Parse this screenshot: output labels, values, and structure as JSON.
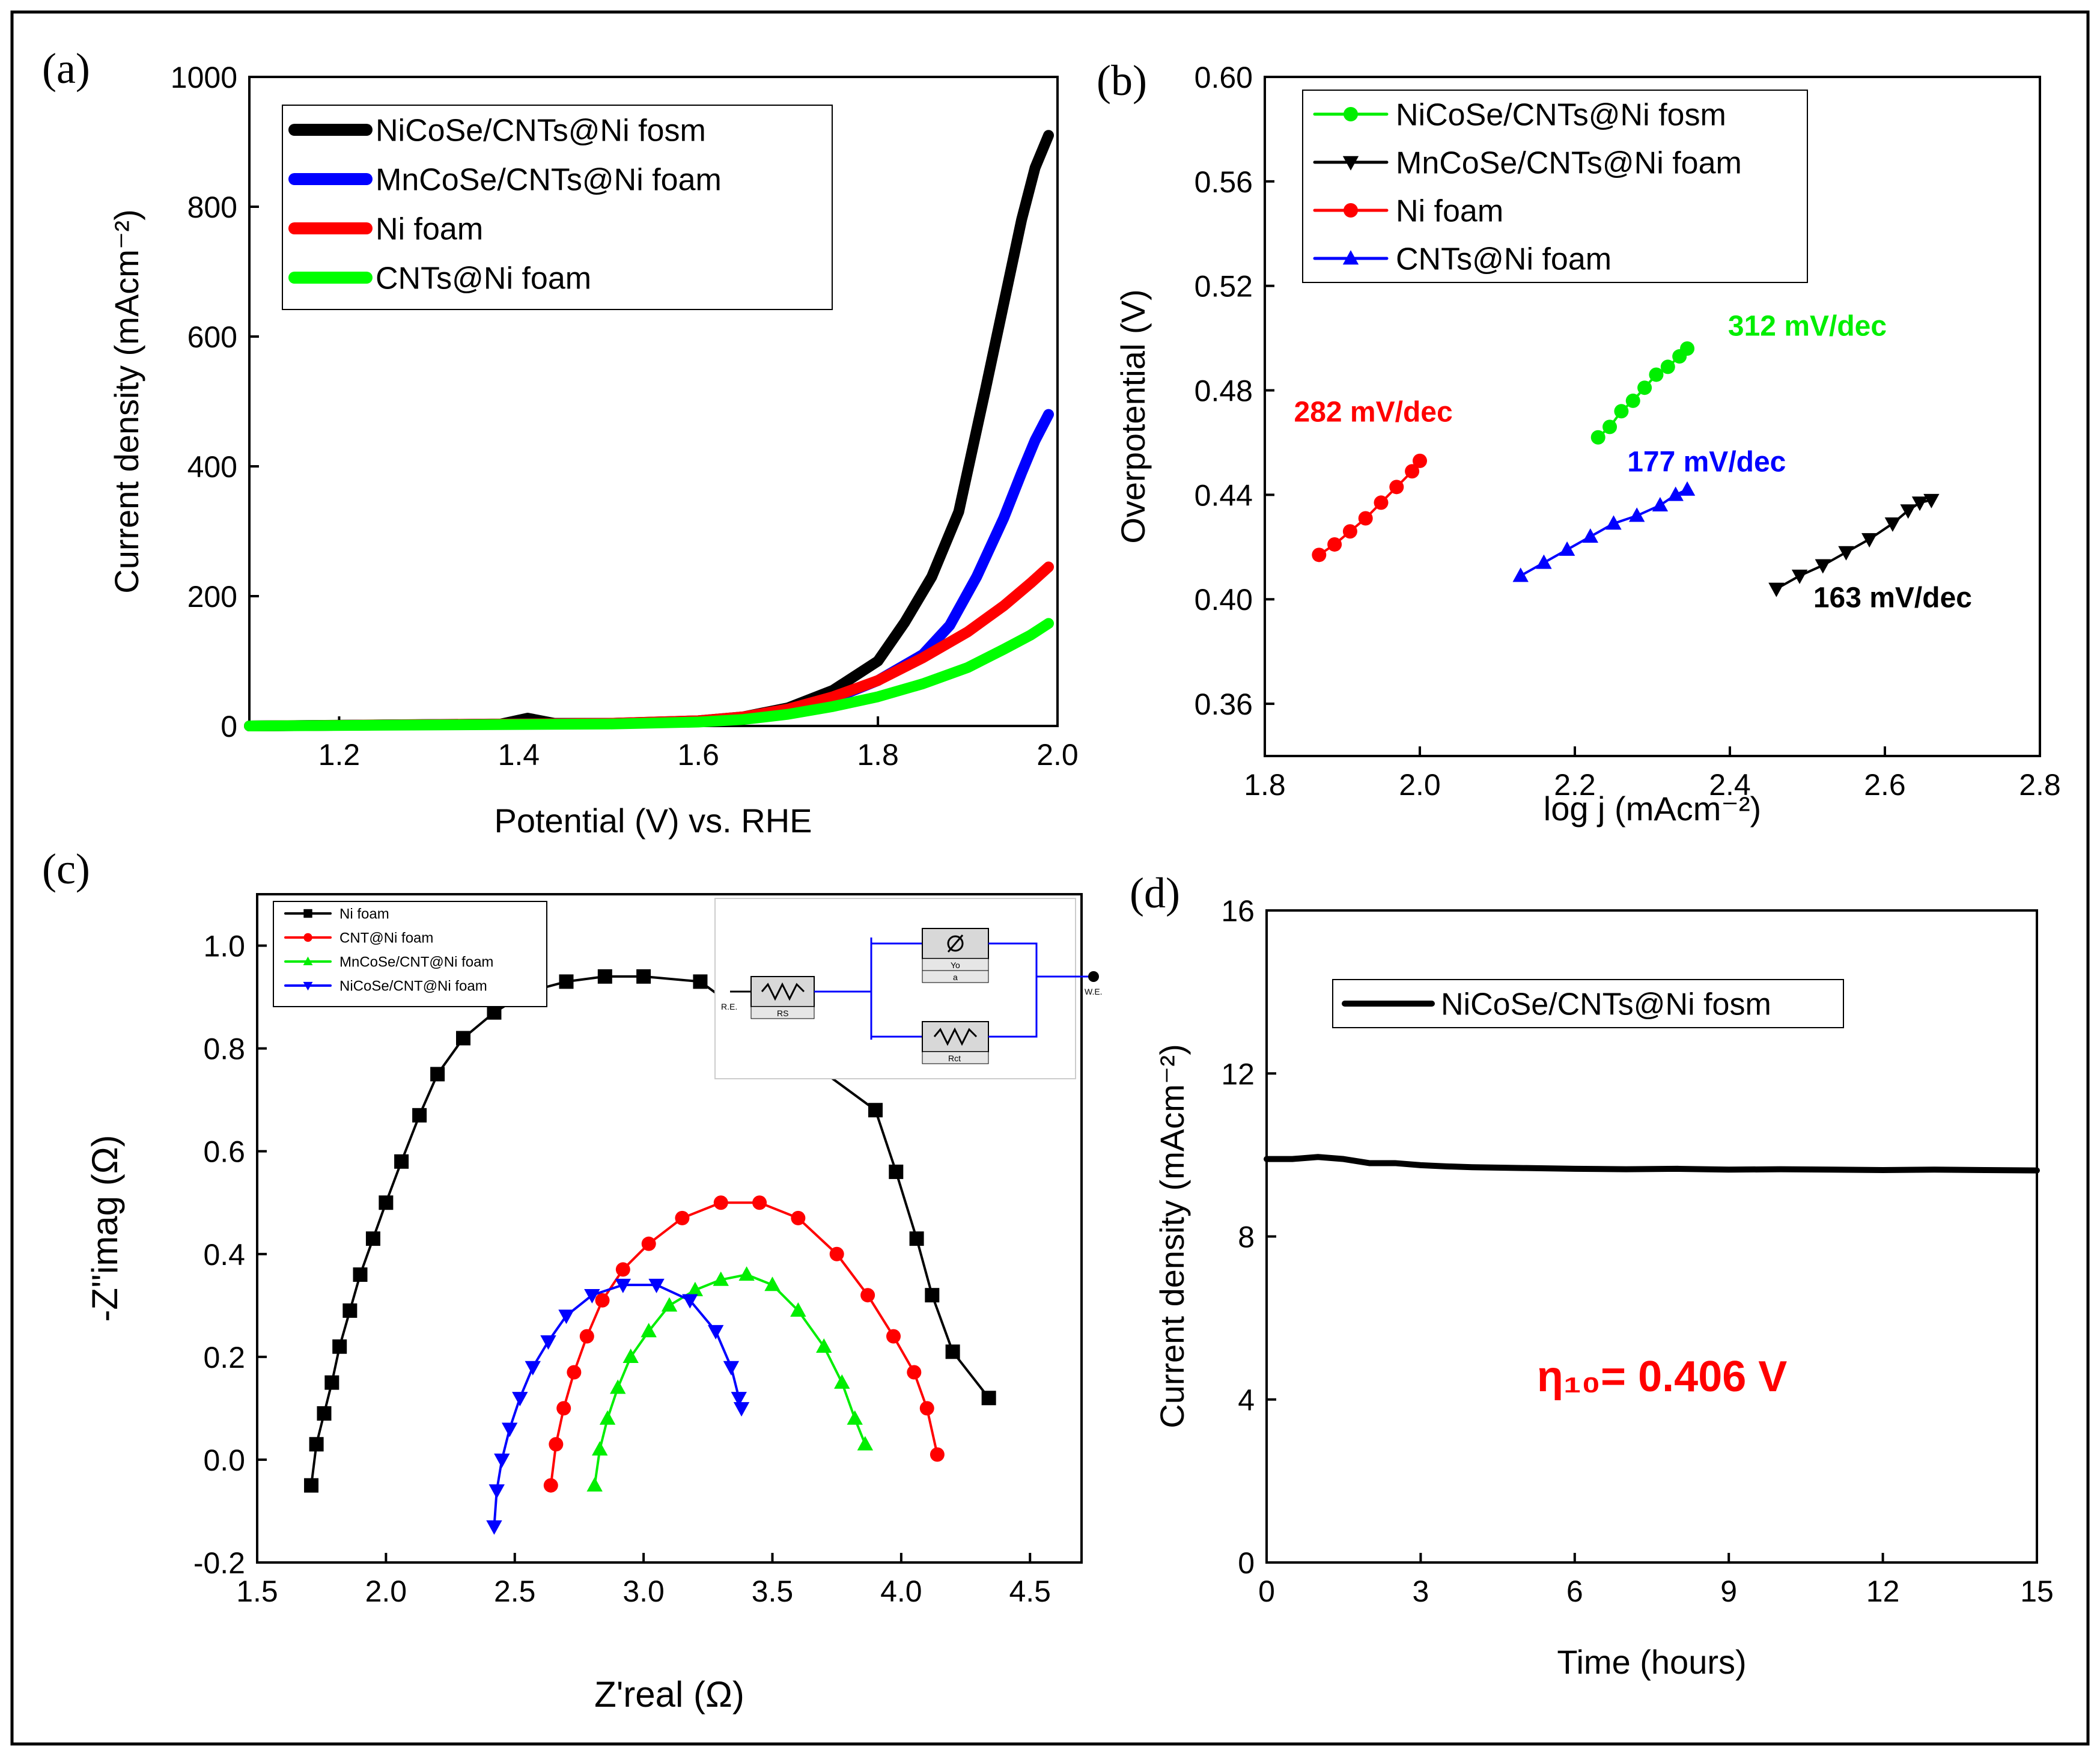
{
  "figure": {
    "panel_labels": [
      "(a)",
      "(b)",
      "(c)",
      "(d)"
    ]
  },
  "chart_data": [
    {
      "panel": "(a)",
      "type": "line",
      "xlabel": "Potential (V) vs. RHE",
      "ylabel": "Current density (mAcm⁻²)",
      "xlim": [
        1.1,
        2.0
      ],
      "ylim": [
        0,
        1000
      ],
      "xticks": [
        1.2,
        1.4,
        1.6,
        1.8,
        2.0
      ],
      "xtick_labels": [
        "1.2",
        "1.4",
        "1.6",
        "1.8",
        "2.0"
      ],
      "yticks": [
        0,
        200,
        400,
        600,
        800,
        1000
      ],
      "ytick_labels": [
        "0",
        "200",
        "400",
        "600",
        "800",
        "1000"
      ],
      "legend_position": "top-left",
      "series": [
        {
          "name": "NiCoSe/CNTs@Ni fosm",
          "color": "#000000",
          "x": [
            1.1,
            1.38,
            1.41,
            1.44,
            1.5,
            1.6,
            1.65,
            1.7,
            1.75,
            1.8,
            1.83,
            1.86,
            1.89,
            1.92,
            1.94,
            1.96,
            1.975,
            1.99
          ],
          "y": [
            0,
            3,
            12,
            4,
            4,
            8,
            14,
            28,
            55,
            100,
            160,
            230,
            330,
            520,
            650,
            780,
            860,
            910
          ]
        },
        {
          "name": "MnCoSe/CNTs@Ni foam",
          "color": "#0000ff",
          "x": [
            1.1,
            1.5,
            1.6,
            1.65,
            1.7,
            1.75,
            1.8,
            1.85,
            1.88,
            1.91,
            1.94,
            1.96,
            1.975,
            1.99
          ],
          "y": [
            0,
            4,
            7,
            12,
            24,
            42,
            70,
            110,
            155,
            230,
            320,
            390,
            440,
            480
          ]
        },
        {
          "name": "Ni foam",
          "color": "#ff0000",
          "x": [
            1.1,
            1.5,
            1.6,
            1.65,
            1.7,
            1.75,
            1.8,
            1.85,
            1.9,
            1.94,
            1.97,
            1.99
          ],
          "y": [
            0,
            4,
            8,
            14,
            26,
            45,
            70,
            105,
            145,
            185,
            220,
            245
          ]
        },
        {
          "name": "CNTs@Ni foam",
          "color": "#00ff00",
          "x": [
            1.1,
            1.5,
            1.6,
            1.65,
            1.7,
            1.75,
            1.8,
            1.85,
            1.9,
            1.94,
            1.97,
            1.99
          ],
          "y": [
            0,
            3,
            6,
            10,
            18,
            30,
            45,
            65,
            90,
            118,
            140,
            158
          ]
        }
      ]
    },
    {
      "panel": "(b)",
      "type": "scatter",
      "xlabel": "log j (mAcm⁻²)",
      "ylabel": "Overpotential (V)",
      "xlim": [
        1.8,
        2.8
      ],
      "ylim": [
        0.34,
        0.6
      ],
      "xticks": [
        1.8,
        2.0,
        2.2,
        2.4,
        2.6,
        2.8
      ],
      "xtick_labels": [
        "1.8",
        "2.0",
        "2.2",
        "2.4",
        "2.6",
        "2.8"
      ],
      "yticks": [
        0.36,
        0.4,
        0.44,
        0.48,
        0.52,
        0.56,
        0.6
      ],
      "ytick_labels": [
        "0.36",
        "0.40",
        "0.44",
        "0.48",
        "0.52",
        "0.56",
        "0.60"
      ],
      "legend_position": "top-left",
      "series": [
        {
          "name": "NiCoSe/CNTs@Ni fosm",
          "color": "#00ee00",
          "marker": "circle",
          "x": [
            2.23,
            2.245,
            2.26,
            2.275,
            2.29,
            2.305,
            2.32,
            2.335,
            2.345
          ],
          "y": [
            0.462,
            0.466,
            0.472,
            0.476,
            0.481,
            0.486,
            0.489,
            0.493,
            0.496
          ]
        },
        {
          "name": "MnCoSe/CNTs@Ni foam",
          "color": "#000000",
          "marker": "triangle-down",
          "x": [
            2.46,
            2.49,
            2.52,
            2.55,
            2.58,
            2.61,
            2.63,
            2.645,
            2.66
          ],
          "y": [
            0.404,
            0.409,
            0.413,
            0.418,
            0.423,
            0.429,
            0.434,
            0.437,
            0.438
          ]
        },
        {
          "name": "Ni foam",
          "color": "#ff0000",
          "marker": "circle",
          "x": [
            1.87,
            1.89,
            1.91,
            1.93,
            1.95,
            1.97,
            1.99,
            2.0
          ],
          "y": [
            0.417,
            0.421,
            0.426,
            0.431,
            0.437,
            0.443,
            0.449,
            0.453
          ]
        },
        {
          "name": "CNTs@Ni foam",
          "color": "#0000ff",
          "marker": "triangle-up",
          "x": [
            2.13,
            2.16,
            2.19,
            2.22,
            2.25,
            2.28,
            2.31,
            2.33,
            2.345
          ],
          "y": [
            0.409,
            0.414,
            0.419,
            0.424,
            0.429,
            0.432,
            0.436,
            0.44,
            0.442
          ]
        }
      ],
      "annotations": [
        {
          "text": "312 mV/dec",
          "color": "#00ee00",
          "x": 2.5,
          "y": 0.501
        },
        {
          "text": "282 mV/dec",
          "color": "#ff0000",
          "x": 1.94,
          "y": 0.468
        },
        {
          "text": "177 mV/dec",
          "color": "#0000ff",
          "x": 2.37,
          "y": 0.449
        },
        {
          "text": "163 mV/dec",
          "color": "#000000",
          "x": 2.61,
          "y": 0.397
        }
      ]
    },
    {
      "panel": "(c)",
      "type": "scatter",
      "xlabel": "Z'real (Ω)",
      "ylabel": "-Z''imag (Ω)",
      "xlim": [
        1.5,
        4.7
      ],
      "ylim": [
        -0.2,
        1.1
      ],
      "xticks": [
        1.5,
        2.0,
        2.5,
        3.0,
        3.5,
        4.0,
        4.5
      ],
      "xtick_labels": [
        "1.5",
        "2.0",
        "2.5",
        "3.0",
        "3.5",
        "4.0",
        "4.5"
      ],
      "yticks": [
        -0.2,
        0.0,
        0.2,
        0.4,
        0.6,
        0.8,
        1.0
      ],
      "ytick_labels": [
        "-0.2",
        "0.0",
        "0.2",
        "0.4",
        "0.6",
        "0.8",
        "1.0"
      ],
      "legend_position": "top-left",
      "series": [
        {
          "name": "Ni foam",
          "color": "#000000",
          "marker": "square",
          "x": [
            1.71,
            1.73,
            1.76,
            1.79,
            1.82,
            1.86,
            1.9,
            1.95,
            2.0,
            2.06,
            2.13,
            2.2,
            2.3,
            2.42,
            2.55,
            2.7,
            2.85,
            3.0,
            3.22,
            3.9,
            3.98,
            4.06,
            4.12,
            4.2,
            4.34
          ],
          "y": [
            -0.05,
            0.03,
            0.09,
            0.15,
            0.22,
            0.29,
            0.36,
            0.43,
            0.5,
            0.58,
            0.67,
            0.75,
            0.82,
            0.87,
            0.91,
            0.93,
            0.94,
            0.94,
            0.93,
            0.68,
            0.56,
            0.43,
            0.32,
            0.21,
            0.12
          ]
        },
        {
          "name": "CNT@Ni foam",
          "color": "#ff0000",
          "marker": "circle",
          "x": [
            2.64,
            2.66,
            2.69,
            2.73,
            2.78,
            2.84,
            2.92,
            3.02,
            3.15,
            3.3,
            3.45,
            3.6,
            3.75,
            3.87,
            3.97,
            4.05,
            4.1,
            4.14
          ],
          "y": [
            -0.05,
            0.03,
            0.1,
            0.17,
            0.24,
            0.31,
            0.37,
            0.42,
            0.47,
            0.5,
            0.5,
            0.47,
            0.4,
            0.32,
            0.24,
            0.17,
            0.1,
            0.01
          ]
        },
        {
          "name": "MnCoSe/CNT@Ni foam",
          "color": "#00ee00",
          "marker": "triangle-up",
          "x": [
            2.81,
            2.83,
            2.86,
            2.9,
            2.95,
            3.02,
            3.1,
            3.2,
            3.3,
            3.4,
            3.5,
            3.6,
            3.7,
            3.77,
            3.82,
            3.86
          ],
          "y": [
            -0.05,
            0.02,
            0.08,
            0.14,
            0.2,
            0.25,
            0.3,
            0.33,
            0.35,
            0.36,
            0.34,
            0.29,
            0.22,
            0.15,
            0.08,
            0.03
          ]
        },
        {
          "name": "NiCoSe/CNT@Ni foam",
          "color": "#0000ff",
          "marker": "triangle-down",
          "x": [
            2.42,
            2.43,
            2.45,
            2.48,
            2.52,
            2.57,
            2.63,
            2.7,
            2.8,
            2.92,
            3.05,
            3.18,
            3.28,
            3.34,
            3.37,
            3.38
          ],
          "y": [
            -0.13,
            -0.06,
            0.0,
            0.06,
            0.12,
            0.18,
            0.23,
            0.28,
            0.32,
            0.34,
            0.34,
            0.31,
            0.25,
            0.18,
            0.12,
            0.1
          ]
        }
      ],
      "inset_labels": {
        "re": "R.E.",
        "rs": "RS",
        "yo": "Yo",
        "a": "a",
        "rct": "Rct",
        "we": "W.E."
      }
    },
    {
      "panel": "(d)",
      "type": "line",
      "xlabel": "Time (hours)",
      "ylabel": "Current density (mAcm⁻²)",
      "xlim": [
        0,
        15
      ],
      "ylim": [
        0,
        16
      ],
      "xticks": [
        0,
        3,
        6,
        9,
        12,
        15
      ],
      "xtick_labels": [
        "0",
        "3",
        "6",
        "9",
        "12",
        "15"
      ],
      "yticks": [
        0,
        4,
        8,
        12,
        16
      ],
      "ytick_labels": [
        "0",
        "4",
        "8",
        "12",
        "16"
      ],
      "legend_position": "top-left",
      "series": [
        {
          "name": "NiCoSe/CNTs@Ni fosm",
          "color": "#000000",
          "x": [
            0,
            0.5,
            1.0,
            1.5,
            2.0,
            2.5,
            3.0,
            3.5,
            4.0,
            5.0,
            6.0,
            7.0,
            8.0,
            9.0,
            10.0,
            11.0,
            12.0,
            13.0,
            14.0,
            15.0
          ],
          "y": [
            9.9,
            9.9,
            9.95,
            9.9,
            9.8,
            9.8,
            9.75,
            9.72,
            9.7,
            9.68,
            9.66,
            9.65,
            9.66,
            9.64,
            9.65,
            9.64,
            9.63,
            9.64,
            9.63,
            9.62
          ]
        }
      ],
      "annotation": "η₁₀= 0.406 V",
      "annotation_color": "#ff0000"
    }
  ]
}
